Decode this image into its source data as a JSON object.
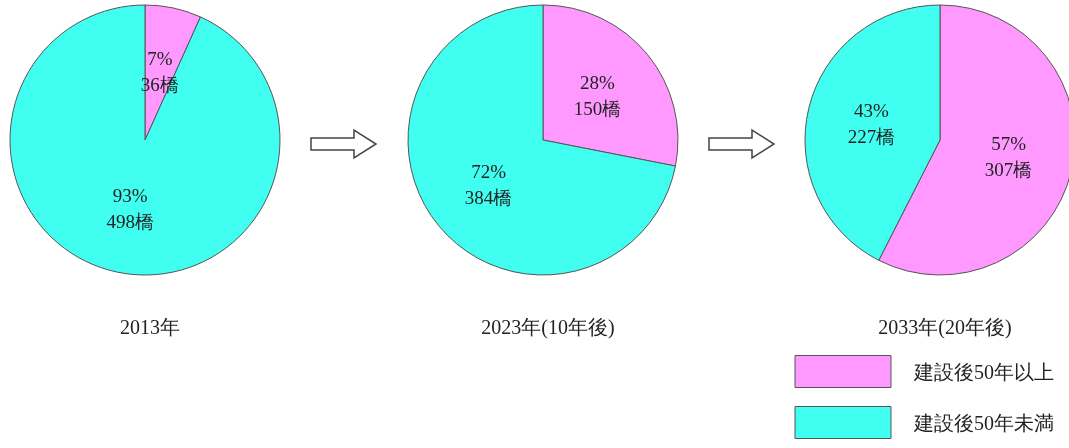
{
  "chart_data": [
    {
      "type": "pie",
      "title": "2013年",
      "categories": [
        null,
        null
      ],
      "values": [
        36,
        498
      ],
      "colors": [
        "#ff99ff",
        "#40fff0"
      ],
      "value_labels": [
        "7%\n36橋",
        "93%\n498橋"
      ]
    },
    {
      "type": "pie",
      "title": "2023年(10年後)",
      "categories": [
        null,
        null
      ],
      "values": [
        150,
        384
      ],
      "colors": [
        "#ff99ff",
        "#40fff0"
      ],
      "value_labels": [
        "28%\n150橋",
        "72%\n384橋"
      ]
    },
    {
      "type": "pie",
      "title": "2033年(20年後)",
      "categories": [
        "建設後50年以上",
        "建設後50年未満"
      ],
      "values": [
        307,
        227
      ],
      "colors": [
        "#ff99ff",
        "#40fff0"
      ],
      "value_labels": [
        "57%\n307橋",
        "43%\n227橋"
      ],
      "legend": "bottom"
    }
  ]
}
